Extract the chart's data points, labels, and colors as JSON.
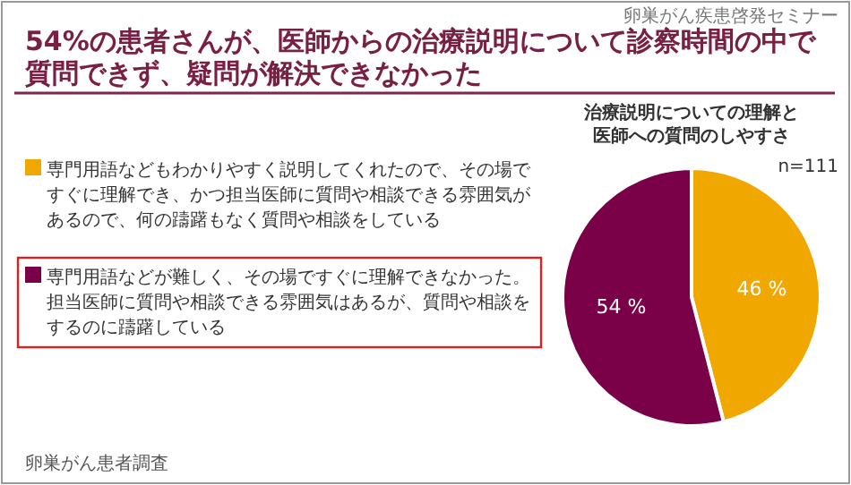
{
  "chart_data": {
    "type": "pie",
    "title": "54%の患者さんが、医師からの治療説明について診察時間の中で質問できず、疑問が解決できなかった",
    "subtitle": "治療説明についての理解と医師への質問のしやすさ",
    "categories": [
      "専門用語などもわかりやすく説明してくれたので、その場ですぐに理解でき、かつ担当医師に質問や相談できる雰囲気があるので、何の躊躇もなく質問や相談をしている",
      "専門用語などが難しく、その場ですぐに理解できなかった。担当医師に質問や相談できる雰囲気はあるが、質問や相談をするのに躊躇している"
    ],
    "values": [
      46,
      54
    ],
    "colors": [
      "#f0a800",
      "#7a0048"
    ],
    "value_labels": [
      "46 %",
      "54 %"
    ],
    "legend": "left",
    "annotations": [
      "卵巣がん疾患啓発セミナー",
      "n=111",
      "卵巣がん患者調査"
    ]
  }
}
